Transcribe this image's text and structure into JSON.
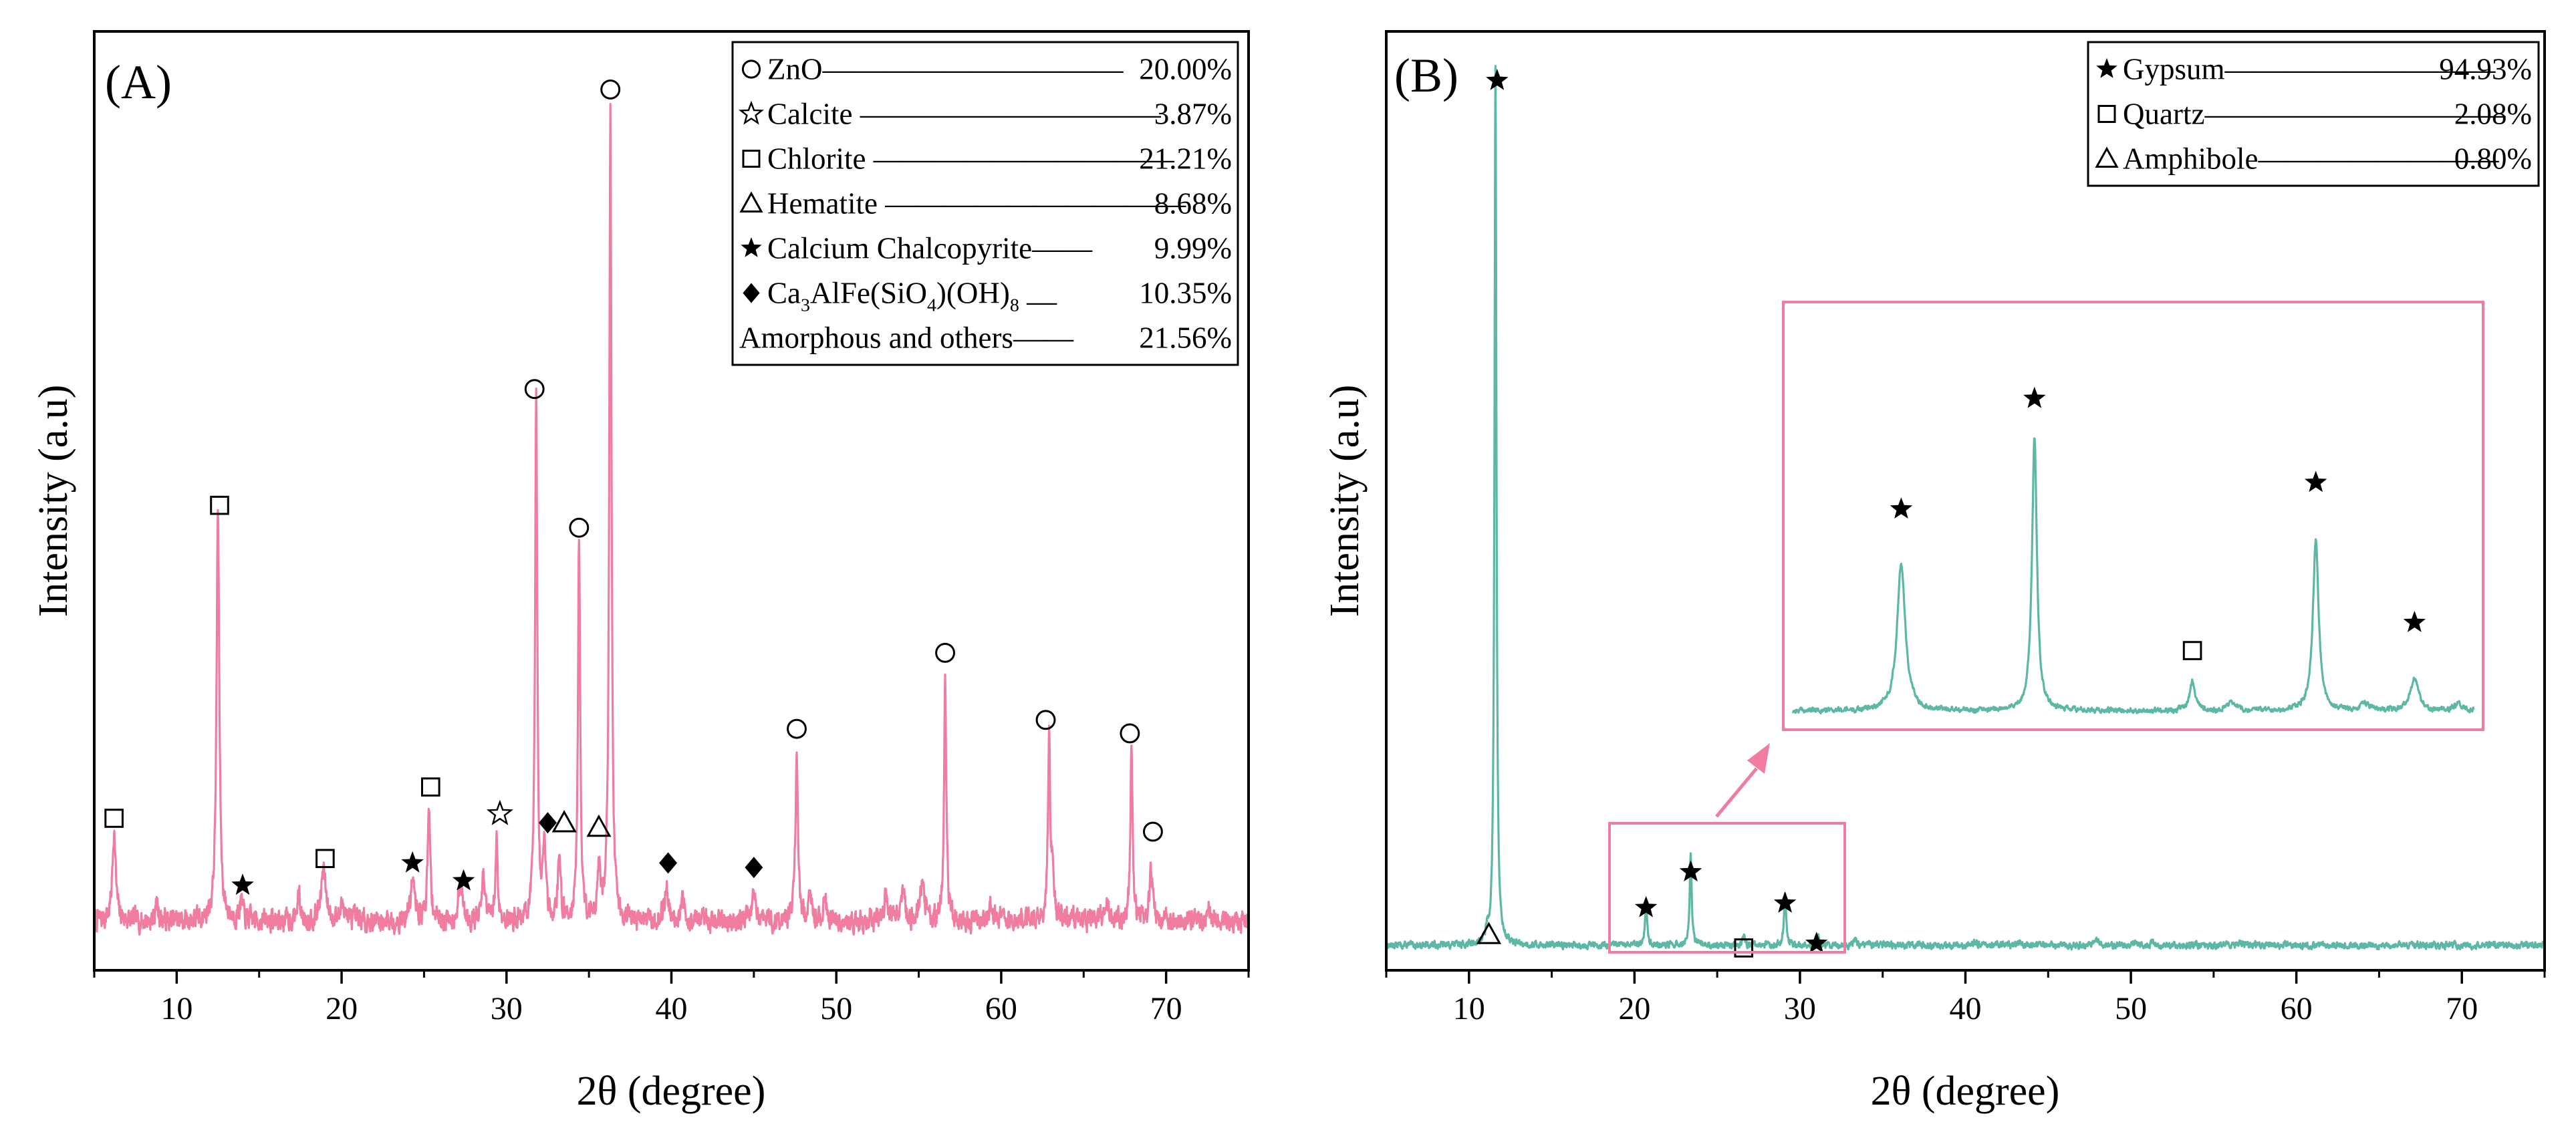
{
  "chart_data": [
    {
      "type": "line",
      "panel_label": "(A)",
      "xlabel": "2θ (degree)",
      "ylabel": "Intensity (a.u)",
      "xlim": [
        5,
        75
      ],
      "ylim": [
        0,
        1.05
      ],
      "xticks": [
        10,
        20,
        30,
        40,
        50,
        60,
        70
      ],
      "line_color": "#f07ca0",
      "baseline": 0.055,
      "noise_amplitude": 0.01,
      "peaks": [
        {
          "x": 6.2,
          "h": 0.1,
          "w": 0.12
        },
        {
          "x": 8.8,
          "h": 0.02,
          "w": 0.1
        },
        {
          "x": 12.5,
          "h": 0.46,
          "w": 0.1
        },
        {
          "x": 13.9,
          "h": 0.02,
          "w": 0.12
        },
        {
          "x": 17.4,
          "h": 0.03,
          "w": 0.1
        },
        {
          "x": 18.9,
          "h": 0.055,
          "w": 0.18
        },
        {
          "x": 20.1,
          "h": 0.02,
          "w": 0.15
        },
        {
          "x": 24.3,
          "h": 0.045,
          "w": 0.15
        },
        {
          "x": 25.3,
          "h": 0.12,
          "w": 0.1
        },
        {
          "x": 27.2,
          "h": 0.04,
          "w": 0.15
        },
        {
          "x": 28.6,
          "h": 0.045,
          "w": 0.12
        },
        {
          "x": 29.4,
          "h": 0.09,
          "w": 0.08
        },
        {
          "x": 31.8,
          "h": 0.58,
          "w": 0.08
        },
        {
          "x": 32.3,
          "h": 0.08,
          "w": 0.1
        },
        {
          "x": 33.2,
          "h": 0.07,
          "w": 0.1
        },
        {
          "x": 34.4,
          "h": 0.43,
          "w": 0.08
        },
        {
          "x": 35.6,
          "h": 0.06,
          "w": 0.1
        },
        {
          "x": 36.3,
          "h": 0.91,
          "w": 0.08
        },
        {
          "x": 39.7,
          "h": 0.035,
          "w": 0.15
        },
        {
          "x": 40.7,
          "h": 0.02,
          "w": 0.12
        },
        {
          "x": 45.0,
          "h": 0.03,
          "w": 0.15
        },
        {
          "x": 47.6,
          "h": 0.19,
          "w": 0.09
        },
        {
          "x": 48.4,
          "h": 0.02,
          "w": 0.12
        },
        {
          "x": 49.3,
          "h": 0.02,
          "w": 0.15
        },
        {
          "x": 53.0,
          "h": 0.03,
          "w": 0.12
        },
        {
          "x": 54.0,
          "h": 0.03,
          "w": 0.15
        },
        {
          "x": 55.2,
          "h": 0.04,
          "w": 0.18
        },
        {
          "x": 56.6,
          "h": 0.27,
          "w": 0.08
        },
        {
          "x": 59.4,
          "h": 0.02,
          "w": 0.15
        },
        {
          "x": 62.9,
          "h": 0.21,
          "w": 0.08
        },
        {
          "x": 63.1,
          "h": 0.05,
          "w": 0.08
        },
        {
          "x": 66.4,
          "h": 0.02,
          "w": 0.15
        },
        {
          "x": 67.9,
          "h": 0.19,
          "w": 0.08
        },
        {
          "x": 69.1,
          "h": 0.06,
          "w": 0.1
        },
        {
          "x": 72.6,
          "h": 0.01,
          "w": 0.15
        }
      ],
      "annotations": [
        {
          "x": 6.2,
          "y": 0.17,
          "marker": "open-square"
        },
        {
          "x": 12.6,
          "y": 0.52,
          "marker": "open-square"
        },
        {
          "x": 14.0,
          "y": 0.095,
          "marker": "filled-star"
        },
        {
          "x": 19.0,
          "y": 0.125,
          "marker": "open-square"
        },
        {
          "x": 24.3,
          "y": 0.12,
          "marker": "filled-star"
        },
        {
          "x": 25.4,
          "y": 0.205,
          "marker": "open-square"
        },
        {
          "x": 27.4,
          "y": 0.1,
          "marker": "filled-star"
        },
        {
          "x": 29.6,
          "y": 0.175,
          "marker": "open-star"
        },
        {
          "x": 31.7,
          "y": 0.65,
          "marker": "open-circle"
        },
        {
          "x": 32.5,
          "y": 0.165,
          "marker": "filled-diamond"
        },
        {
          "x": 33.5,
          "y": 0.165,
          "marker": "open-triangle"
        },
        {
          "x": 34.4,
          "y": 0.495,
          "marker": "open-circle"
        },
        {
          "x": 35.6,
          "y": 0.16,
          "marker": "open-triangle"
        },
        {
          "x": 36.3,
          "y": 0.985,
          "marker": "open-circle"
        },
        {
          "x": 39.8,
          "y": 0.12,
          "marker": "filled-diamond"
        },
        {
          "x": 45.0,
          "y": 0.115,
          "marker": "filled-diamond"
        },
        {
          "x": 47.6,
          "y": 0.27,
          "marker": "open-circle"
        },
        {
          "x": 56.6,
          "y": 0.355,
          "marker": "open-circle"
        },
        {
          "x": 62.7,
          "y": 0.28,
          "marker": "open-circle"
        },
        {
          "x": 67.8,
          "y": 0.265,
          "marker": "open-circle"
        },
        {
          "x": 69.2,
          "y": 0.155,
          "marker": "open-circle"
        }
      ],
      "legend": {
        "position": "top-right",
        "entries": [
          {
            "marker": "open-circle",
            "label": "ZnO",
            "leader": "——————————",
            "value": "20.00%"
          },
          {
            "marker": "open-star",
            "label": "Calcite",
            "leader": " ——————————",
            "value": "3.87%"
          },
          {
            "marker": "open-square",
            "label": "Chlorite",
            "leader": " ——————————",
            "value": "21.21%"
          },
          {
            "marker": "open-triangle",
            "label": "Hematite",
            "leader": "  ——————————",
            "value": "8.68%"
          },
          {
            "marker": "filled-star",
            "label": "Calcium Chalcopyrite",
            "leader": "——",
            "value": "9.99%"
          },
          {
            "marker": "filled-diamond",
            "label_parts": [
              "Ca",
              "3",
              "AlFe(SiO",
              "4",
              ")(OH)",
              "8"
            ],
            "leader": " —",
            "value": "10.35%"
          },
          {
            "marker": "none",
            "label": "Amorphous and others",
            "leader": "——",
            "value": "21.56%"
          }
        ]
      }
    },
    {
      "type": "line",
      "panel_label": "(B)",
      "xlabel": "2θ (degree)",
      "ylabel": "Intensity (a.u)",
      "xlim": [
        5,
        75
      ],
      "ylim": [
        0,
        1.05
      ],
      "xticks": [
        10,
        20,
        30,
        40,
        50,
        60,
        70
      ],
      "line_color": "#5cb8a4",
      "baseline": 0.028,
      "noise_amplitude": 0.003,
      "peaks": [
        {
          "x": 11.1,
          "h": 0.01,
          "w": 0.1
        },
        {
          "x": 11.6,
          "h": 0.985,
          "w": 0.07
        },
        {
          "x": 20.7,
          "h": 0.05,
          "w": 0.07
        },
        {
          "x": 23.4,
          "h": 0.1,
          "w": 0.07
        },
        {
          "x": 26.6,
          "h": 0.01,
          "w": 0.08
        },
        {
          "x": 29.1,
          "h": 0.06,
          "w": 0.08
        },
        {
          "x": 31.1,
          "h": 0.01,
          "w": 0.08
        },
        {
          "x": 33.3,
          "h": 0.006,
          "w": 0.1
        },
        {
          "x": 40.6,
          "h": 0.005,
          "w": 0.1
        },
        {
          "x": 43.3,
          "h": 0.005,
          "w": 0.1
        },
        {
          "x": 47.9,
          "h": 0.007,
          "w": 0.1
        },
        {
          "x": 50.3,
          "h": 0.005,
          "w": 0.1
        },
        {
          "x": 51.3,
          "h": 0.004,
          "w": 0.1
        },
        {
          "x": 56.6,
          "h": 0.004,
          "w": 0.1
        }
      ],
      "annotations": [
        {
          "x": 11.2,
          "y": 0.04,
          "marker": "open-triangle"
        },
        {
          "x": 11.7,
          "y": 0.995,
          "marker": "filled-star"
        },
        {
          "x": 20.7,
          "y": 0.07,
          "marker": "filled-star"
        },
        {
          "x": 23.4,
          "y": 0.11,
          "marker": "filled-star"
        },
        {
          "x": 26.6,
          "y": 0.025,
          "marker": "open-square"
        },
        {
          "x": 29.1,
          "y": 0.075,
          "marker": "filled-star"
        },
        {
          "x": 31.0,
          "y": 0.03,
          "marker": "filled-star"
        }
      ],
      "inset": {
        "description": "Enlarged view of the boxed region",
        "source_xlim": [
          18.5,
          32.3
        ],
        "source_ylim": [
          -0.01,
          0.14
        ],
        "inset_xlim": [
          18.5,
          32.3
        ],
        "baseline": 0.028,
        "peaks": [
          {
            "x": 20.7,
            "h": 0.1,
            "w": 0.1
          },
          {
            "x": 23.4,
            "h": 0.185,
            "w": 0.06
          },
          {
            "x": 26.6,
            "h": 0.02,
            "w": 0.07
          },
          {
            "x": 27.4,
            "h": 0.005,
            "w": 0.1
          },
          {
            "x": 29.1,
            "h": 0.115,
            "w": 0.07
          },
          {
            "x": 30.1,
            "h": 0.005,
            "w": 0.1
          },
          {
            "x": 31.1,
            "h": 0.022,
            "w": 0.1
          },
          {
            "x": 32.0,
            "h": 0.005,
            "w": 0.1
          }
        ],
        "annotations": [
          {
            "x": 20.7,
            "y": 0.165,
            "marker": "filled-star"
          },
          {
            "x": 23.4,
            "y": 0.24,
            "marker": "filled-star"
          },
          {
            "x": 26.6,
            "y": 0.069,
            "marker": "open-square"
          },
          {
            "x": 29.1,
            "y": 0.183,
            "marker": "filled-star"
          },
          {
            "x": 31.1,
            "y": 0.088,
            "marker": "filled-star"
          }
        ]
      },
      "legend": {
        "position": "top-right",
        "entries": [
          {
            "marker": "filled-star",
            "label": "Gypsum",
            "leader": "—————————",
            "value": "94.93%"
          },
          {
            "marker": "open-square",
            "label": "Quartz",
            "leader": "——————————",
            "value": "2.08%"
          },
          {
            "marker": "open-triangle",
            "label": "Amphibole",
            "leader": "————————",
            "value": "0.80%"
          }
        ]
      }
    }
  ]
}
